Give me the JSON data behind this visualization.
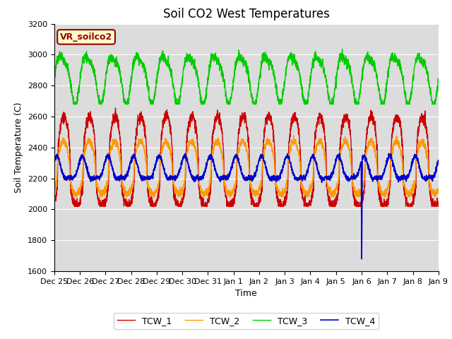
{
  "title": "Soil CO2 West Temperatures",
  "xlabel": "Time",
  "ylabel": "Soil Temperature (C)",
  "ylim": [
    1600,
    3200
  ],
  "yticks": [
    1600,
    1800,
    2000,
    2200,
    2400,
    2600,
    2800,
    3000,
    3200
  ],
  "xtick_labels": [
    "Dec 25",
    "Dec 26",
    "Dec 27",
    "Dec 28",
    "Dec 29",
    "Dec 30",
    "Dec 31",
    "Jan 1",
    "Jan 2",
    "Jan 3",
    "Jan 4",
    "Jan 5",
    "Jan 6",
    "Jan 7",
    "Jan 8",
    "Jan 9"
  ],
  "bg_color": "#dcdcdc",
  "line_colors": [
    "#cc0000",
    "#ff9900",
    "#00cc00",
    "#0000cc"
  ],
  "legend_labels": [
    "TCW_1",
    "TCW_2",
    "TCW_3",
    "TCW_4"
  ],
  "annotation_label": "VR_soilco2",
  "annotation_color": "#990000",
  "annotation_bg": "#ffffcc",
  "title_fontsize": 12,
  "axis_label_fontsize": 9,
  "tick_fontsize": 8
}
